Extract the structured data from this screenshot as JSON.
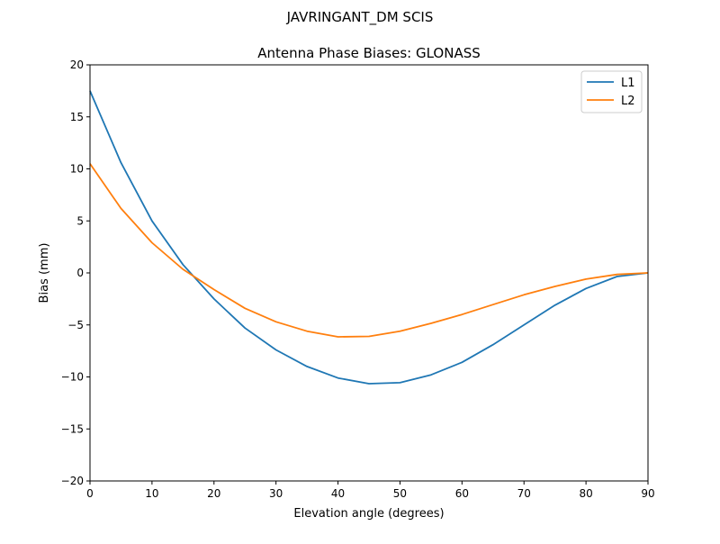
{
  "chart_data": {
    "type": "line",
    "suptitle": "JAVRINGANT_DM   SCIS",
    "title": "Antenna Phase Biases: GLONASS",
    "xlabel": "Elevation angle (degrees)",
    "ylabel": "Bias (mm)",
    "xlim": [
      0,
      90
    ],
    "ylim": [
      -20,
      20
    ],
    "xticks": [
      0,
      10,
      20,
      30,
      40,
      50,
      60,
      70,
      80,
      90
    ],
    "yticks": [
      -20,
      -15,
      -10,
      -5,
      0,
      5,
      10,
      15,
      20
    ],
    "grid": false,
    "legend_position": "top-right",
    "x": [
      0,
      5,
      10,
      15,
      20,
      25,
      30,
      35,
      40,
      45,
      50,
      55,
      60,
      65,
      70,
      75,
      80,
      85,
      90
    ],
    "series": [
      {
        "name": "L1",
        "color": "#1f77b4",
        "values": [
          17.5,
          10.6,
          5.0,
          0.8,
          -2.5,
          -5.3,
          -7.4,
          -9.0,
          -10.1,
          -10.65,
          -10.55,
          -9.8,
          -8.6,
          -6.9,
          -5.0,
          -3.1,
          -1.5,
          -0.35,
          0.0
        ]
      },
      {
        "name": "L2",
        "color": "#ff7f0e",
        "values": [
          10.5,
          6.2,
          2.9,
          0.35,
          -1.6,
          -3.4,
          -4.7,
          -5.6,
          -6.15,
          -6.1,
          -5.6,
          -4.85,
          -4.0,
          -3.05,
          -2.1,
          -1.3,
          -0.6,
          -0.15,
          0.0
        ]
      }
    ]
  }
}
